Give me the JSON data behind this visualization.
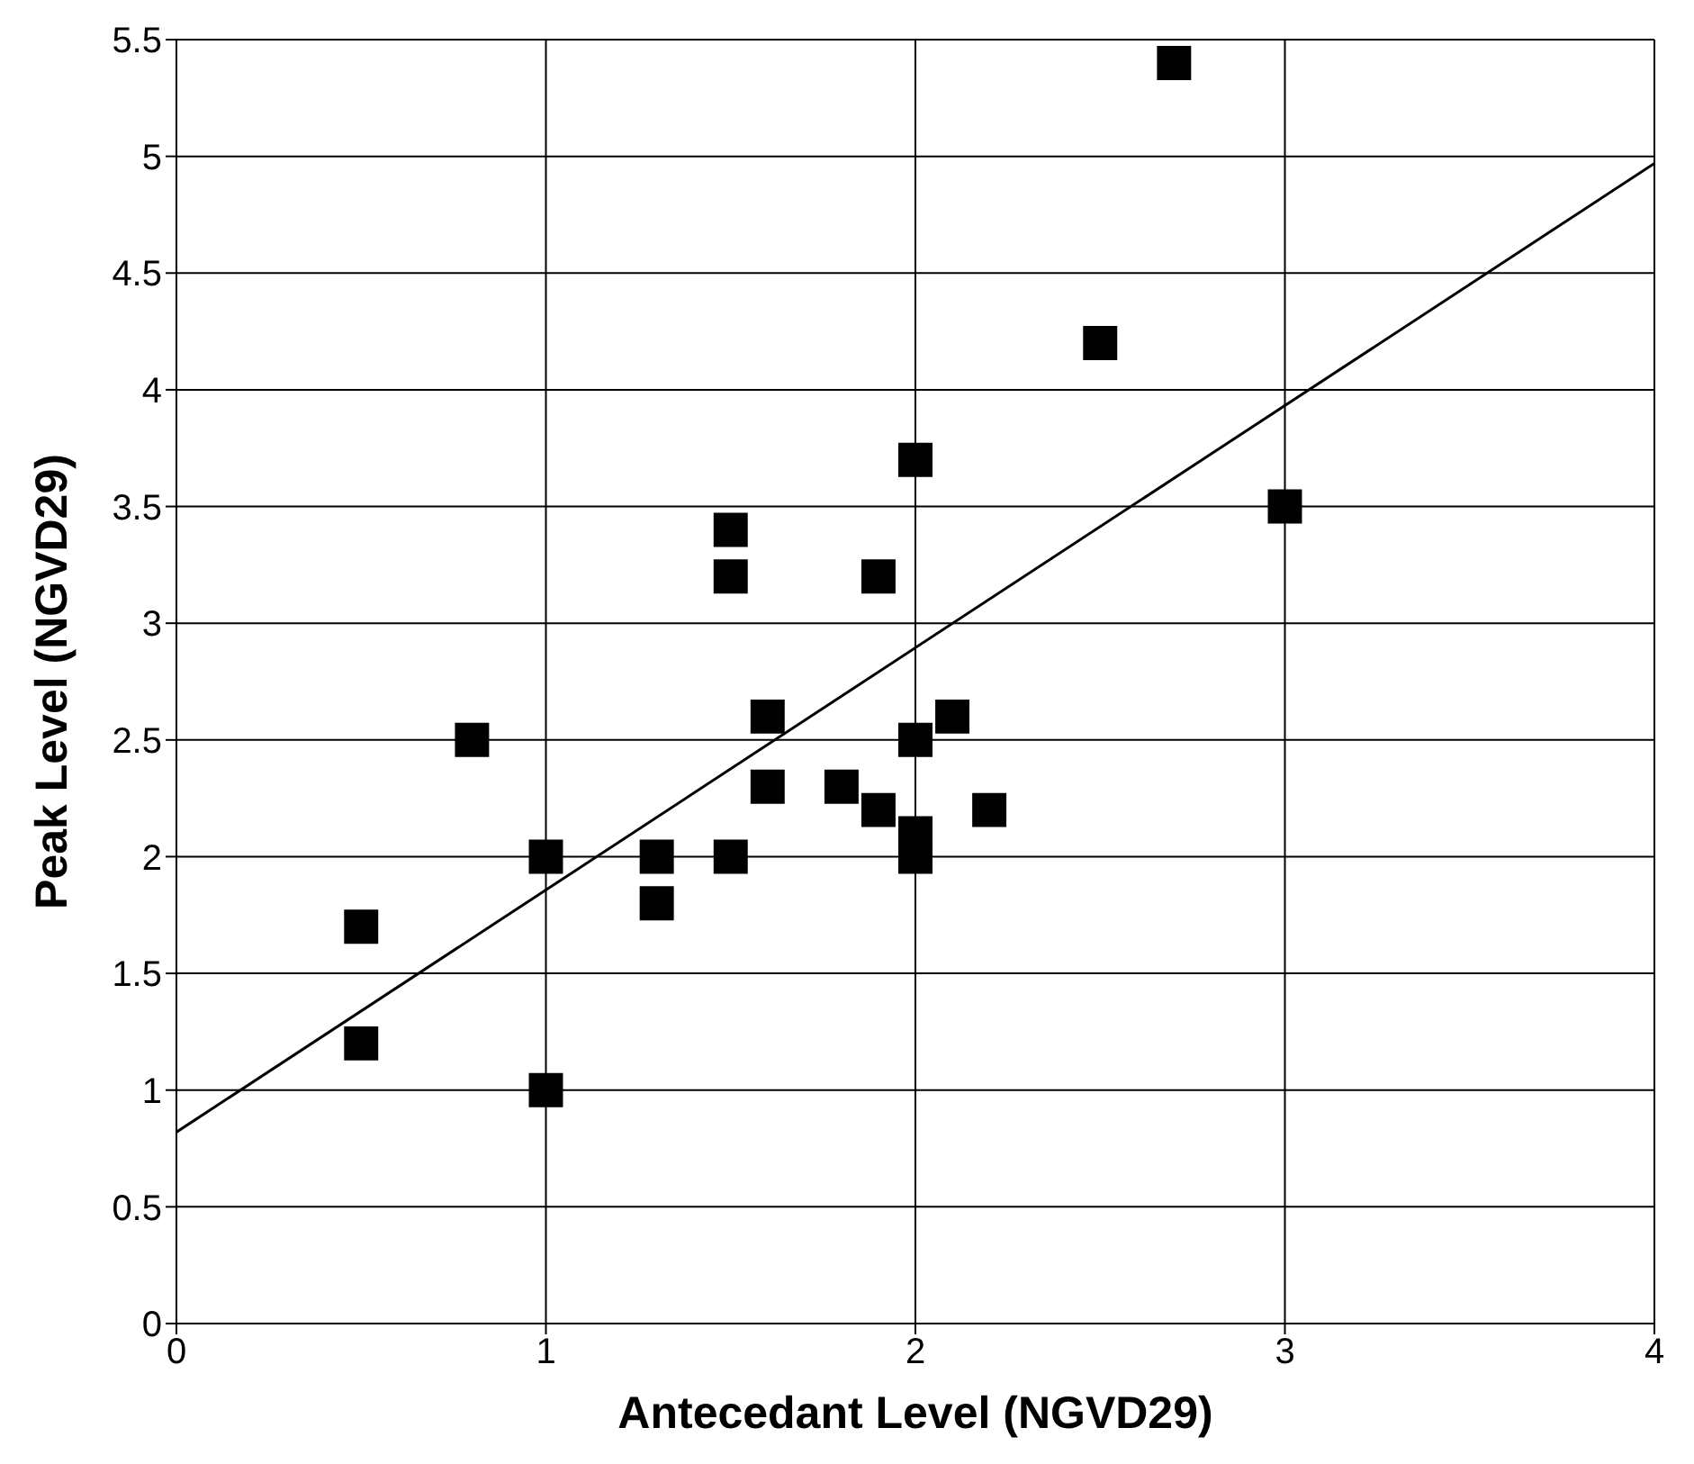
{
  "chart_data": {
    "type": "scatter",
    "xlabel": "Antecedant Level (NGVD29)",
    "ylabel": "Peak Level (NGVD29)",
    "xlim": [
      0,
      4
    ],
    "xticks": [
      0,
      1,
      2,
      3,
      4
    ],
    "ylim": [
      0,
      5.5
    ],
    "yticks": [
      0,
      0.5,
      1,
      1.5,
      2,
      2.5,
      3,
      3.5,
      4,
      4.5,
      5,
      5.5
    ],
    "grid": true,
    "series": [
      {
        "color": "#000000",
        "marker": "square",
        "x": [
          0.5,
          0.5,
          0.8,
          1,
          1,
          1.3,
          1.3,
          1.5,
          1.5,
          1.5,
          1.6,
          1.6,
          1.8,
          1.9,
          1.9,
          2,
          2,
          2,
          2,
          2.1,
          2.2,
          2.5,
          2.7,
          3
        ],
        "values": [
          1.7,
          1.2,
          2.5,
          2,
          1,
          2,
          1.8,
          3.4,
          3.2,
          2,
          2.6,
          2.3,
          2.3,
          3.2,
          2.2,
          3.7,
          2.5,
          2.1,
          2,
          2.6,
          2.2,
          4.2,
          5.4,
          3.5
        ]
      },
      {
        "type": "line",
        "marker": "none",
        "color": "#000000",
        "x": [
          0,
          4
        ],
        "values": [
          0.82,
          4.97
        ]
      }
    ]
  }
}
